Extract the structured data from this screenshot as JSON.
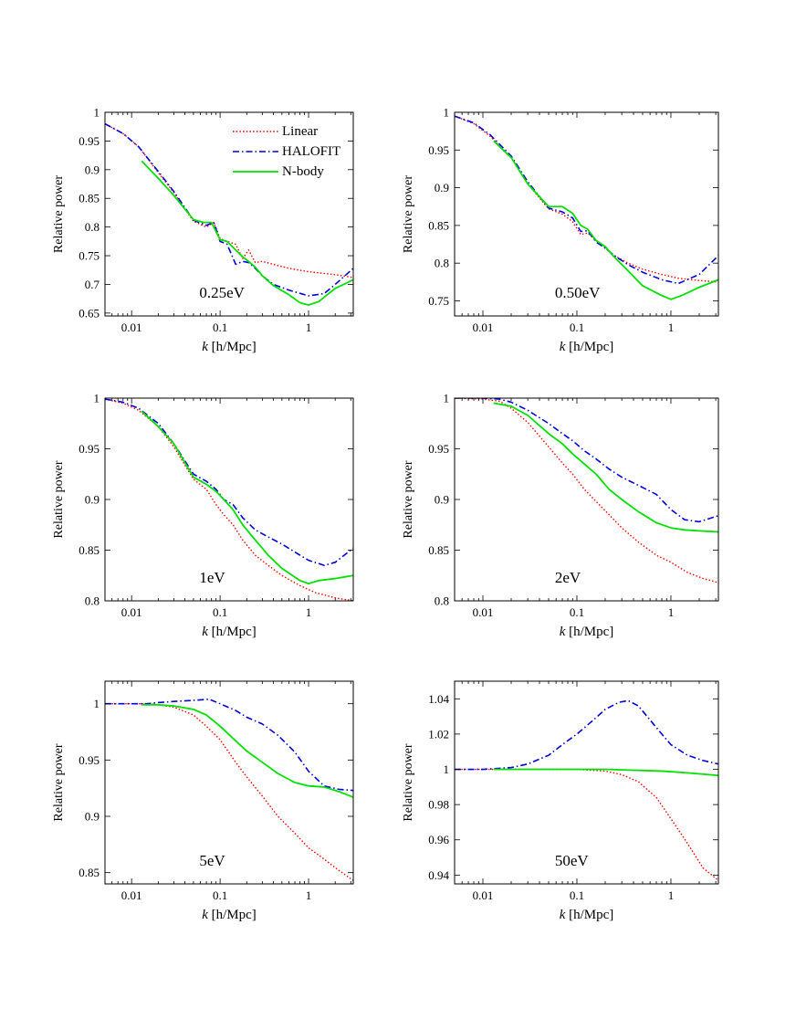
{
  "chart_data": [
    {
      "type": "line",
      "panel_label": "0.25eV",
      "xlabel_k": "k",
      "xlabel_units": "[h/Mpc]",
      "ylabel": "Relative power",
      "xscale": "log",
      "xlim": [
        0.005,
        3.2
      ],
      "ylim": [
        0.645,
        1.0
      ],
      "xticks": [
        0.01,
        0.1,
        1
      ],
      "xticklabels": [
        "0.01",
        "0.1",
        "1"
      ],
      "yticks": [
        0.65,
        0.7,
        0.75,
        0.8,
        0.85,
        0.9,
        0.95,
        1
      ],
      "yticklabels": [
        "0.65",
        "0.7",
        "0.75",
        "0.8",
        "0.85",
        "0.9",
        "0.95",
        "1"
      ],
      "legend": {
        "position": "top-right",
        "entries": [
          "Linear",
          "HALOFIT",
          "N-body"
        ]
      },
      "series": [
        {
          "name": "Linear",
          "color": "#ff0000",
          "style": "dotted",
          "x": [
            0.005,
            0.008,
            0.012,
            0.02,
            0.03,
            0.05,
            0.07,
            0.085,
            0.1,
            0.12,
            0.15,
            0.18,
            0.21,
            0.25,
            0.3,
            0.4,
            0.6,
            1.0,
            2.0,
            3.2
          ],
          "y": [
            0.98,
            0.963,
            0.94,
            0.895,
            0.86,
            0.81,
            0.8,
            0.808,
            0.78,
            0.775,
            0.77,
            0.745,
            0.76,
            0.738,
            0.74,
            0.735,
            0.728,
            0.722,
            0.717,
            0.712
          ]
        },
        {
          "name": "HALOFIT",
          "color": "#0000dd",
          "style": "dashdot",
          "x": [
            0.005,
            0.008,
            0.012,
            0.02,
            0.03,
            0.05,
            0.07,
            0.085,
            0.1,
            0.12,
            0.15,
            0.18,
            0.21,
            0.25,
            0.3,
            0.4,
            0.6,
            1.0,
            1.5,
            2.0,
            3.2
          ],
          "y": [
            0.98,
            0.963,
            0.94,
            0.897,
            0.862,
            0.812,
            0.803,
            0.808,
            0.775,
            0.77,
            0.735,
            0.74,
            0.738,
            0.728,
            0.715,
            0.7,
            0.69,
            0.68,
            0.684,
            0.7,
            0.728
          ]
        },
        {
          "name": "N-body",
          "color": "#00e000",
          "style": "solid",
          "x": [
            0.013,
            0.02,
            0.03,
            0.05,
            0.065,
            0.08,
            0.1,
            0.12,
            0.15,
            0.18,
            0.21,
            0.25,
            0.3,
            0.4,
            0.6,
            0.8,
            1.0,
            1.3,
            2.0,
            3.2
          ],
          "y": [
            0.915,
            0.885,
            0.855,
            0.813,
            0.808,
            0.808,
            0.778,
            0.775,
            0.76,
            0.748,
            0.74,
            0.73,
            0.715,
            0.698,
            0.682,
            0.668,
            0.664,
            0.67,
            0.693,
            0.708
          ]
        }
      ]
    },
    {
      "type": "line",
      "panel_label": "0.50eV",
      "xlabel_k": "k",
      "xlabel_units": "[h/Mpc]",
      "ylabel": "Relative power",
      "xscale": "log",
      "xlim": [
        0.005,
        3.2
      ],
      "ylim": [
        0.73,
        1.0
      ],
      "xticks": [
        0.01,
        0.1,
        1
      ],
      "xticklabels": [
        "0.01",
        "0.1",
        "1"
      ],
      "yticks": [
        0.75,
        0.8,
        0.85,
        0.9,
        0.95,
        1
      ],
      "yticklabels": [
        "0.75",
        "0.8",
        "0.85",
        "0.9",
        "0.95",
        "1"
      ],
      "series": [
        {
          "name": "Linear",
          "color": "#ff0000",
          "style": "dotted",
          "x": [
            0.005,
            0.008,
            0.012,
            0.02,
            0.03,
            0.05,
            0.07,
            0.09,
            0.11,
            0.13,
            0.16,
            0.2,
            0.25,
            0.35,
            0.5,
            0.8,
            1.2,
            2.0,
            3.2
          ],
          "y": [
            0.995,
            0.985,
            0.968,
            0.94,
            0.905,
            0.872,
            0.865,
            0.855,
            0.838,
            0.84,
            0.83,
            0.82,
            0.81,
            0.8,
            0.792,
            0.785,
            0.78,
            0.777,
            0.775
          ]
        },
        {
          "name": "HALOFIT",
          "color": "#0000dd",
          "style": "dashdot",
          "x": [
            0.005,
            0.008,
            0.012,
            0.02,
            0.03,
            0.05,
            0.07,
            0.09,
            0.11,
            0.13,
            0.16,
            0.2,
            0.25,
            0.35,
            0.5,
            0.8,
            1.2,
            2.0,
            3.2
          ],
          "y": [
            0.995,
            0.986,
            0.97,
            0.942,
            0.908,
            0.873,
            0.868,
            0.86,
            0.842,
            0.843,
            0.828,
            0.82,
            0.81,
            0.798,
            0.788,
            0.778,
            0.773,
            0.785,
            0.81
          ]
        },
        {
          "name": "N-body",
          "color": "#00e000",
          "style": "solid",
          "x": [
            0.013,
            0.02,
            0.03,
            0.05,
            0.07,
            0.09,
            0.11,
            0.13,
            0.16,
            0.2,
            0.25,
            0.35,
            0.5,
            0.8,
            1.0,
            1.3,
            2.0,
            3.2
          ],
          "y": [
            0.962,
            0.94,
            0.905,
            0.875,
            0.875,
            0.866,
            0.85,
            0.845,
            0.83,
            0.822,
            0.808,
            0.79,
            0.77,
            0.757,
            0.752,
            0.757,
            0.768,
            0.778
          ]
        }
      ]
    },
    {
      "type": "line",
      "panel_label": "1eV",
      "xlabel_k": "k",
      "xlabel_units": "[h/Mpc]",
      "ylabel": "Relative power",
      "xscale": "log",
      "xlim": [
        0.005,
        3.2
      ],
      "ylim": [
        0.8,
        1.0
      ],
      "xticks": [
        0.01,
        0.1,
        1
      ],
      "xticklabels": [
        "0.01",
        "0.1",
        "1"
      ],
      "yticks": [
        0.8,
        0.85,
        0.9,
        0.95,
        1
      ],
      "yticklabels": [
        "0.8",
        "0.85",
        "0.9",
        "0.95",
        "1"
      ],
      "series": [
        {
          "name": "Linear",
          "color": "#ff0000",
          "style": "dotted",
          "x": [
            0.005,
            0.008,
            0.012,
            0.02,
            0.03,
            0.05,
            0.07,
            0.09,
            0.11,
            0.14,
            0.18,
            0.25,
            0.35,
            0.5,
            0.8,
            1.2,
            2.0,
            3.2
          ],
          "y": [
            0.999,
            0.995,
            0.988,
            0.972,
            0.952,
            0.92,
            0.91,
            0.895,
            0.885,
            0.875,
            0.86,
            0.845,
            0.835,
            0.825,
            0.815,
            0.808,
            0.803,
            0.8
          ]
        },
        {
          "name": "HALOFIT",
          "color": "#0000dd",
          "style": "dashdot",
          "x": [
            0.005,
            0.008,
            0.012,
            0.02,
            0.03,
            0.05,
            0.07,
            0.09,
            0.11,
            0.14,
            0.18,
            0.25,
            0.35,
            0.5,
            0.8,
            1.0,
            1.5,
            2.0,
            3.2
          ],
          "y": [
            0.999,
            0.996,
            0.99,
            0.975,
            0.955,
            0.925,
            0.918,
            0.91,
            0.9,
            0.895,
            0.882,
            0.87,
            0.863,
            0.856,
            0.845,
            0.84,
            0.835,
            0.838,
            0.852
          ]
        },
        {
          "name": "N-body",
          "color": "#00e000",
          "style": "solid",
          "x": [
            0.013,
            0.02,
            0.03,
            0.05,
            0.07,
            0.09,
            0.11,
            0.14,
            0.18,
            0.25,
            0.35,
            0.5,
            0.8,
            1.0,
            1.3,
            2.0,
            3.2
          ],
          "y": [
            0.987,
            0.972,
            0.955,
            0.922,
            0.915,
            0.908,
            0.9,
            0.89,
            0.875,
            0.86,
            0.845,
            0.832,
            0.82,
            0.817,
            0.82,
            0.822,
            0.825
          ]
        }
      ]
    },
    {
      "type": "line",
      "panel_label": "2eV",
      "xlabel_k": "k",
      "xlabel_units": "[h/Mpc]",
      "ylabel": "Relative power",
      "xscale": "log",
      "xlim": [
        0.005,
        3.2
      ],
      "ylim": [
        0.8,
        1.0
      ],
      "xticks": [
        0.01,
        0.1,
        1
      ],
      "xticklabels": [
        "0.01",
        "0.1",
        "1"
      ],
      "yticks": [
        0.8,
        0.85,
        0.9,
        0.95,
        1
      ],
      "yticklabels": [
        "0.8",
        "0.85",
        "0.9",
        "0.95",
        "1"
      ],
      "series": [
        {
          "name": "Linear",
          "color": "#ff0000",
          "style": "dotted",
          "x": [
            0.005,
            0.01,
            0.015,
            0.02,
            0.03,
            0.05,
            0.07,
            0.09,
            0.12,
            0.16,
            0.22,
            0.3,
            0.45,
            0.7,
            1.0,
            1.5,
            2.2,
            3.2
          ],
          "y": [
            1.0,
            0.999,
            0.997,
            0.99,
            0.976,
            0.952,
            0.936,
            0.925,
            0.91,
            0.898,
            0.885,
            0.872,
            0.858,
            0.845,
            0.838,
            0.828,
            0.822,
            0.818
          ]
        },
        {
          "name": "HALOFIT",
          "color": "#0000dd",
          "style": "dashdot",
          "x": [
            0.005,
            0.01,
            0.015,
            0.02,
            0.03,
            0.05,
            0.07,
            0.09,
            0.12,
            0.16,
            0.22,
            0.3,
            0.45,
            0.7,
            1.0,
            1.4,
            2.0,
            3.2
          ],
          "y": [
            1.0,
            1.0,
            0.999,
            0.996,
            0.988,
            0.975,
            0.965,
            0.958,
            0.948,
            0.94,
            0.93,
            0.922,
            0.914,
            0.905,
            0.89,
            0.88,
            0.878,
            0.884
          ]
        },
        {
          "name": "N-body",
          "color": "#00e000",
          "style": "solid",
          "x": [
            0.013,
            0.02,
            0.03,
            0.05,
            0.07,
            0.09,
            0.12,
            0.16,
            0.22,
            0.3,
            0.45,
            0.7,
            1.0,
            1.4,
            2.0,
            3.2
          ],
          "y": [
            0.995,
            0.992,
            0.983,
            0.965,
            0.955,
            0.945,
            0.935,
            0.925,
            0.91,
            0.9,
            0.888,
            0.877,
            0.872,
            0.87,
            0.869,
            0.868
          ]
        }
      ]
    },
    {
      "type": "line",
      "panel_label": "5eV",
      "xlabel_k": "k",
      "xlabel_units": "[h/Mpc]",
      "ylabel": "Relative power",
      "xscale": "log",
      "xlim": [
        0.005,
        3.2
      ],
      "ylim": [
        0.84,
        1.02
      ],
      "xticks": [
        0.01,
        0.1,
        1
      ],
      "xticklabels": [
        "0.01",
        "0.1",
        "1"
      ],
      "yticks": [
        0.85,
        0.9,
        0.95,
        1
      ],
      "yticklabels": [
        "0.85",
        "0.9",
        "0.95",
        "1"
      ],
      "series": [
        {
          "name": "Linear",
          "color": "#ff0000",
          "style": "dotted",
          "x": [
            0.005,
            0.01,
            0.015,
            0.02,
            0.03,
            0.05,
            0.07,
            0.1,
            0.15,
            0.2,
            0.3,
            0.45,
            0.7,
            1.0,
            1.5,
            2.2,
            3.2
          ],
          "y": [
            1.0,
            1.0,
            1.0,
            0.999,
            0.997,
            0.99,
            0.98,
            0.968,
            0.948,
            0.935,
            0.918,
            0.9,
            0.885,
            0.872,
            0.862,
            0.852,
            0.843
          ]
        },
        {
          "name": "HALOFIT",
          "color": "#0000dd",
          "style": "dashdot",
          "x": [
            0.005,
            0.01,
            0.015,
            0.02,
            0.03,
            0.05,
            0.075,
            0.1,
            0.15,
            0.2,
            0.3,
            0.45,
            0.7,
            1.0,
            1.5,
            2.2,
            3.2
          ],
          "y": [
            1.0,
            1.0,
            1.0,
            1.001,
            1.002,
            1.003,
            1.004,
            1.0,
            0.994,
            0.988,
            0.982,
            0.972,
            0.957,
            0.94,
            0.927,
            0.924,
            0.923
          ]
        },
        {
          "name": "N-body",
          "color": "#00e000",
          "style": "solid",
          "x": [
            0.013,
            0.02,
            0.03,
            0.05,
            0.07,
            0.1,
            0.15,
            0.2,
            0.3,
            0.45,
            0.7,
            1.0,
            1.5,
            2.2,
            3.2
          ],
          "y": [
            0.999,
            0.999,
            0.998,
            0.995,
            0.99,
            0.98,
            0.967,
            0.958,
            0.948,
            0.938,
            0.93,
            0.927,
            0.926,
            0.922,
            0.917
          ]
        }
      ]
    },
    {
      "type": "line",
      "panel_label": "50eV",
      "xlabel_k": "k",
      "xlabel_units": "[h/Mpc]",
      "ylabel": "Relative power",
      "xscale": "log",
      "xlim": [
        0.005,
        3.2
      ],
      "ylim": [
        0.935,
        1.05
      ],
      "xticks": [
        0.01,
        0.1,
        1
      ],
      "xticklabels": [
        "0.01",
        "0.1",
        "1"
      ],
      "yticks": [
        0.94,
        0.96,
        0.98,
        1,
        1.02,
        1.04
      ],
      "yticklabels": [
        "0.94",
        "0.96",
        "0.98",
        "1",
        "1.02",
        "1.04"
      ],
      "series": [
        {
          "name": "Linear",
          "color": "#ff0000",
          "style": "dotted",
          "x": [
            0.005,
            0.01,
            0.05,
            0.1,
            0.2,
            0.3,
            0.45,
            0.7,
            1.0,
            1.5,
            2.2,
            3.2
          ],
          "y": [
            1.0,
            1.0,
            1.0,
            1.0,
            0.999,
            0.997,
            0.993,
            0.984,
            0.972,
            0.958,
            0.944,
            0.937
          ]
        },
        {
          "name": "HALOFIT",
          "color": "#0000dd",
          "style": "dashdot",
          "x": [
            0.005,
            0.01,
            0.02,
            0.03,
            0.05,
            0.07,
            0.1,
            0.15,
            0.2,
            0.28,
            0.35,
            0.45,
            0.6,
            0.8,
            1.0,
            1.5,
            2.2,
            3.2
          ],
          "y": [
            1.0,
            1.0,
            1.001,
            1.003,
            1.008,
            1.014,
            1.02,
            1.028,
            1.034,
            1.038,
            1.039,
            1.036,
            1.028,
            1.02,
            1.014,
            1.008,
            1.005,
            1.003
          ]
        },
        {
          "name": "N-body",
          "color": "#00e000",
          "style": "solid",
          "x": [
            0.013,
            0.05,
            0.1,
            0.2,
            0.4,
            0.8,
            1.5,
            3.2
          ],
          "y": [
            1.0,
            1.0,
            1.0,
            1.0,
            0.9995,
            0.999,
            0.998,
            0.9965
          ]
        }
      ]
    }
  ]
}
